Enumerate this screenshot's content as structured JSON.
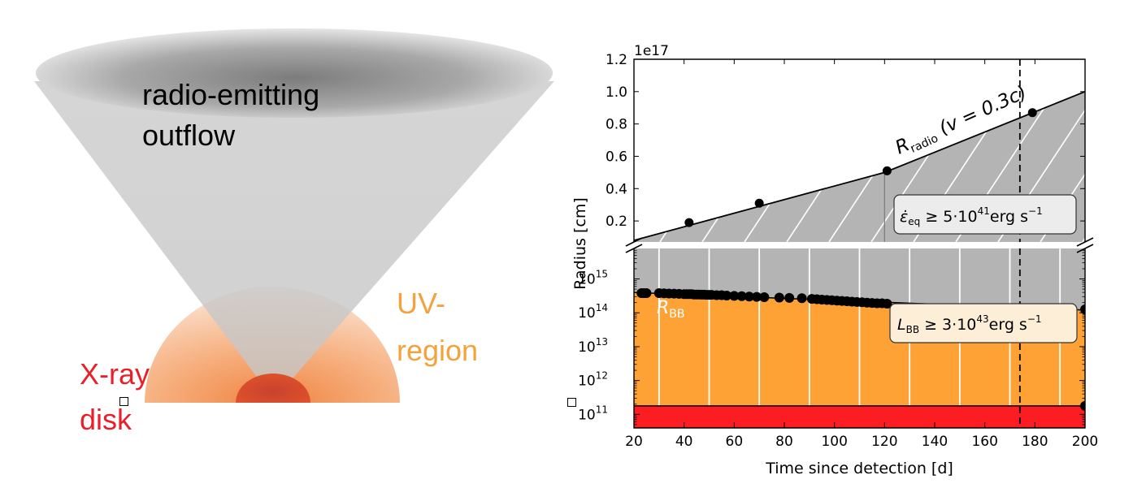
{
  "illustration": {
    "outflow_label_line1": "radio-emitting",
    "outflow_label_line2": "outflow",
    "uv_label_line1": "UV-",
    "uv_label_line2": "region",
    "xray_label_line1": "X-ray",
    "xray_label_line2": "disk",
    "colors": {
      "cone": "#c8c8c8",
      "uv": "#f5a35a",
      "disk": "#d9432a",
      "uv_text": "#f3a23c",
      "xray_text": "#e8202a"
    }
  },
  "chart_data": {
    "type": "scatter",
    "xlabel": "Time since detection [d]",
    "ylabel": "Radius [cm]",
    "x_range": [
      20,
      200
    ],
    "x_ticks": [
      20,
      40,
      60,
      80,
      100,
      120,
      140,
      160,
      180,
      200
    ],
    "vline_x": 174,
    "top_panel": {
      "scale": "linear",
      "offset_label": "1e17",
      "y_range": [
        0.07,
        1.2
      ],
      "y_ticks": [
        "0.2",
        "0.4",
        "0.6",
        "0.8",
        "1.0",
        "1.2"
      ],
      "y_tick_values": [
        0.2,
        0.4,
        0.6,
        0.8,
        1.0,
        1.2
      ],
      "series": {
        "name": "R_radio (v=0.3c)",
        "points": [
          [
            42,
            0.19
          ],
          [
            70,
            0.31
          ],
          [
            121,
            0.51
          ],
          [
            179,
            0.87
          ]
        ],
        "line": [
          [
            20,
            0.08
          ],
          [
            120,
            0.5
          ],
          [
            200,
            1.0
          ]
        ]
      },
      "curve_label": "R_radio (v = 0.3c)",
      "annotation": "ε̇_eq ≥ 5·10^41 erg s^-1",
      "colors": {
        "fill": "#b4b4b4"
      }
    },
    "bottom_panel": {
      "scale": "log",
      "y_range_exp": [
        10.6,
        15.9
      ],
      "y_tick_exponents": [
        11,
        12,
        13,
        14,
        15
      ],
      "series": {
        "name": "R_BB",
        "points": [
          [
            23.0,
            14.58
          ],
          [
            24.0,
            14.58
          ],
          [
            25.0,
            14.58
          ],
          [
            30.0,
            14.58
          ],
          [
            32.0,
            14.575
          ],
          [
            34.0,
            14.57
          ],
          [
            36.0,
            14.565
          ],
          [
            38.0,
            14.56
          ],
          [
            40.0,
            14.55
          ],
          [
            41.0,
            14.55
          ],
          [
            42.0,
            14.55
          ],
          [
            43.0,
            14.55
          ],
          [
            44.0,
            14.54
          ],
          [
            45.0,
            14.54
          ],
          [
            46.0,
            14.54
          ],
          [
            47.0,
            14.535
          ],
          [
            48.0,
            14.535
          ],
          [
            49.0,
            14.53
          ],
          [
            50.0,
            14.53
          ],
          [
            51.0,
            14.53
          ],
          [
            53.0,
            14.52
          ],
          [
            55.0,
            14.52
          ],
          [
            57.0,
            14.51
          ],
          [
            60.0,
            14.5
          ],
          [
            63.0,
            14.49
          ],
          [
            66.0,
            14.48
          ],
          [
            69.0,
            14.47
          ],
          [
            72.0,
            14.46
          ],
          [
            78.0,
            14.45
          ],
          [
            82.0,
            14.44
          ],
          [
            87.0,
            14.43
          ],
          [
            91.0,
            14.41
          ],
          [
            93.0,
            14.4
          ],
          [
            95.0,
            14.39
          ],
          [
            97.0,
            14.38
          ],
          [
            99.0,
            14.37
          ],
          [
            101.0,
            14.36
          ],
          [
            103.0,
            14.35
          ],
          [
            105.0,
            14.34
          ],
          [
            107.0,
            14.33
          ],
          [
            109.0,
            14.32
          ],
          [
            111.0,
            14.31
          ],
          [
            113.0,
            14.3
          ],
          [
            115.0,
            14.29
          ],
          [
            117.0,
            14.28
          ],
          [
            119.0,
            14.28
          ],
          [
            121.0,
            14.27
          ],
          [
            153.0,
            14.13
          ],
          [
            170.0,
            14.1
          ],
          [
            173.0,
            14.1
          ],
          [
            176.0,
            14.1
          ],
          [
            179.0,
            14.1
          ],
          [
            183.0,
            14.1
          ],
          [
            186.0,
            14.1
          ],
          [
            190.0,
            14.1
          ],
          [
            200.0,
            14.1
          ]
        ],
        "line": [
          [
            20,
            14.6
          ],
          [
            200,
            14.08
          ]
        ]
      },
      "curve_label": "R_BB",
      "disk_level_exp": 11.25,
      "disk_point": [
        200,
        11.25
      ],
      "annotation": "L_BB ≥ 3·10^43 erg s^-1",
      "colors": {
        "upper": "#b4b4b4",
        "middle": "#ffa235",
        "disk": "#fc1d23"
      }
    }
  }
}
